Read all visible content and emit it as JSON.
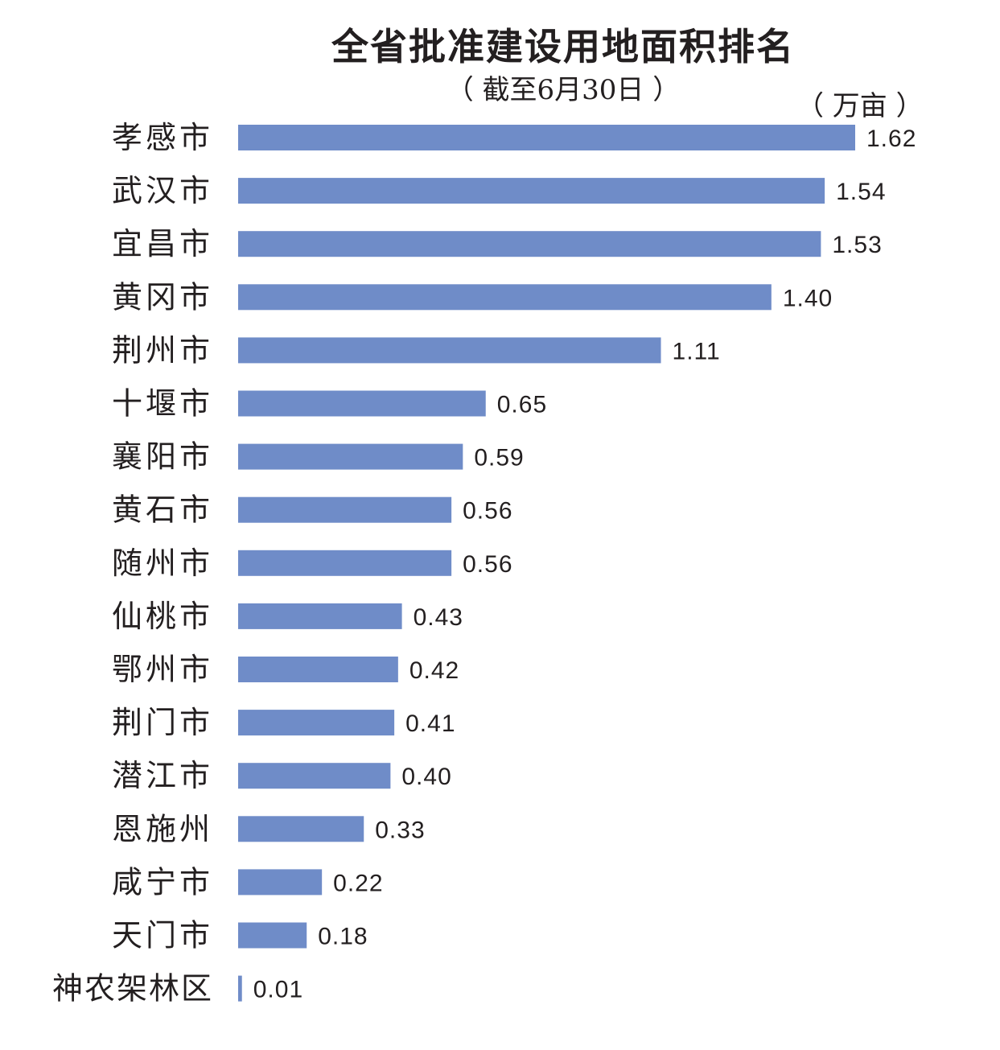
{
  "chart_data": {
    "type": "bar",
    "orientation": "horizontal",
    "title": "全省批准建设用地面积排名",
    "subtitle": "（ 截至6月30日 ）",
    "unit_label": "（ 万亩 ）",
    "xlabel": "",
    "ylabel": "",
    "xlim": [
      0,
      1.62
    ],
    "grid": false,
    "bar_color": "#6f8cc8",
    "categories": [
      "孝感市",
      "武汉市",
      "宜昌市",
      "黄冈市",
      "荆州市",
      "十堰市",
      "襄阳市",
      "黄石市",
      "随州市",
      "仙桃市",
      "鄂州市",
      "荆门市",
      "潜江市",
      "恩施州",
      "咸宁市",
      "天门市",
      "神农架林区"
    ],
    "values": [
      1.62,
      1.54,
      1.53,
      1.4,
      1.11,
      0.65,
      0.59,
      0.56,
      0.56,
      0.43,
      0.42,
      0.41,
      0.4,
      0.33,
      0.22,
      0.18,
      0.01
    ],
    "value_labels": [
      "1.62",
      "1.54",
      "1.53",
      "1.40",
      "1.11",
      "0.65",
      "0.59",
      "0.56",
      "0.56",
      "0.43",
      "0.42",
      "0.41",
      "0.40",
      "0.33",
      "0.22",
      "0.18",
      "0.01"
    ]
  }
}
